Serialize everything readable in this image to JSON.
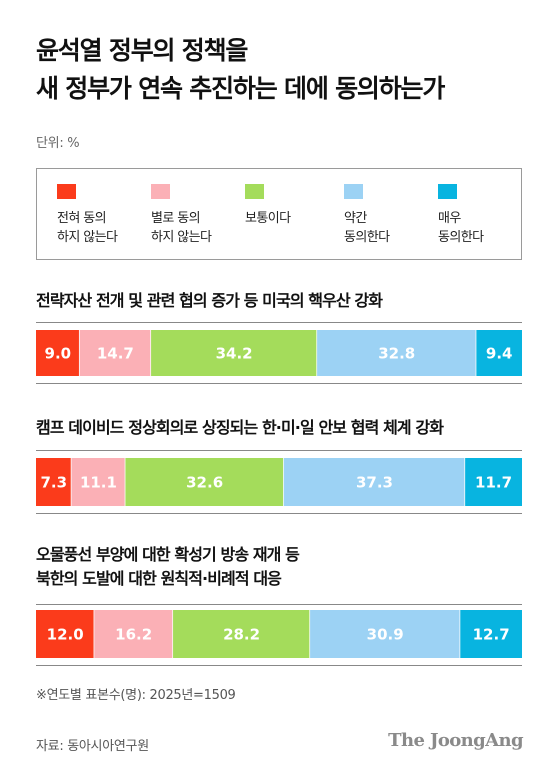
{
  "title": {
    "line1": "윤석열 정부의 정책을",
    "line2": "새 정부가 연속 추진하는 데에 동의하는가"
  },
  "unit": "단위: %",
  "colors": {
    "very_disagree": "#fb3b1b",
    "disagree": "#fbb0b6",
    "neutral": "#a4dc5b",
    "agree": "#9cd2f4",
    "strongly_agree": "#08b4e0"
  },
  "chart_data": {
    "type": "bar",
    "stacked": true,
    "orientation": "horizontal",
    "unit": "%",
    "legend_placement": "top",
    "legend": [
      "전혀 동의\n하지 않는다",
      "별로 동의\n하지 않는다",
      "보통이다",
      "약간\n동의한다",
      "매우\n동의한다"
    ],
    "categories": [
      "전략자산 전개 및 관련 협의 증가 등 미국의 핵우산 강화",
      "캠프 데이비드 정상회의로 상징되는 한·미·일 안보 협력 체계 강화",
      "오물풍선 부양에 대한 확성기 방송 재개 등\n북한의 도발에 대한 원칙적·비례적 대응"
    ],
    "series": [
      {
        "name": "전혀 동의\n하지 않는다",
        "values": [
          9.0,
          7.3,
          12.0
        ],
        "labels": [
          "9.0",
          "7.3",
          "12.0"
        ]
      },
      {
        "name": "별로 동의\n하지 않는다",
        "values": [
          14.7,
          11.1,
          16.2
        ],
        "labels": [
          "14.7",
          "11.1",
          "16.2"
        ]
      },
      {
        "name": "보통이다",
        "values": [
          34.2,
          32.6,
          28.2
        ],
        "labels": [
          "34.2",
          "32.6",
          "28.2"
        ]
      },
      {
        "name": "약간\n동의한다",
        "values": [
          32.8,
          37.3,
          30.9
        ],
        "labels": [
          "32.8",
          "37.3",
          "30.9"
        ]
      },
      {
        "name": "매우\n동의한다",
        "values": [
          9.4,
          11.7,
          12.7
        ],
        "labels": [
          "9.4",
          "11.7",
          "12.7"
        ]
      }
    ]
  },
  "note": "※연도별 표본수(명): 2025년=1509",
  "source": "자료: 동아시아연구원",
  "logo": "The JoongAng"
}
